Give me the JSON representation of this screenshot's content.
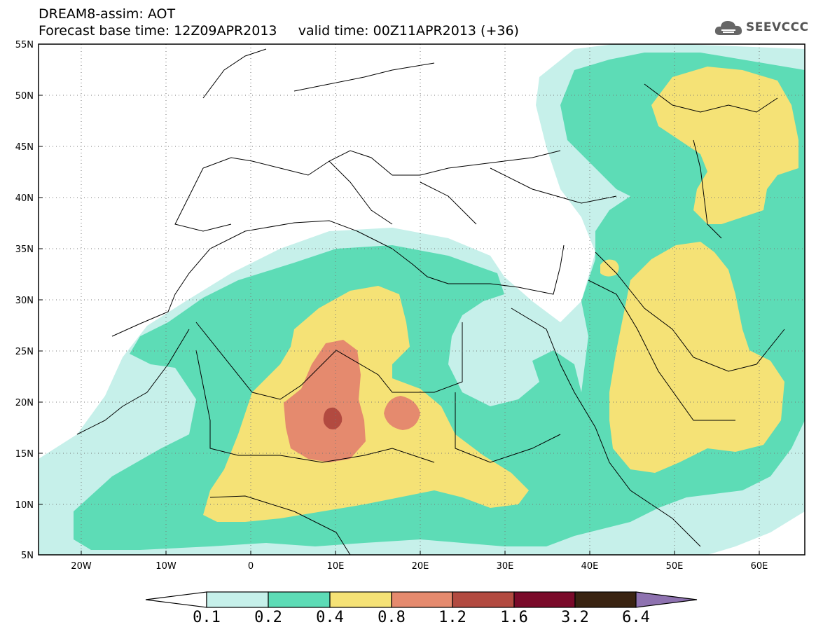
{
  "title": {
    "line1": "DREAM8-assim: AOT",
    "line2": "Forecast base time: 12Z09APR2013     valid time: 00Z11APR2013 (+36)"
  },
  "logo": {
    "icon": "cloud-icon",
    "text": "SEEVCCC"
  },
  "map": {
    "variable": "AOT",
    "lon_range": [
      -25,
      65
    ],
    "lat_range": [
      5,
      55
    ],
    "lat_ticks": [
      "55N",
      "50N",
      "45N",
      "40N",
      "35N",
      "30N",
      "25N",
      "20N",
      "15N",
      "10N",
      "5N"
    ],
    "lon_ticks": [
      "20W",
      "10W",
      "0",
      "10E",
      "20E",
      "30E",
      "40E",
      "50E",
      "60E"
    ],
    "grid": "dotted"
  },
  "colorbar": {
    "levels": [
      "0.1",
      "0.2",
      "0.4",
      "0.8",
      "1.2",
      "1.6",
      "3.2",
      "6.4"
    ],
    "colors": [
      "#ffffff",
      "#c6f0ea",
      "#5ddcb6",
      "#f5e276",
      "#e58a6e",
      "#b24a40",
      "#7a0a2a",
      "#3a2412",
      "#8e72b0"
    ]
  }
}
